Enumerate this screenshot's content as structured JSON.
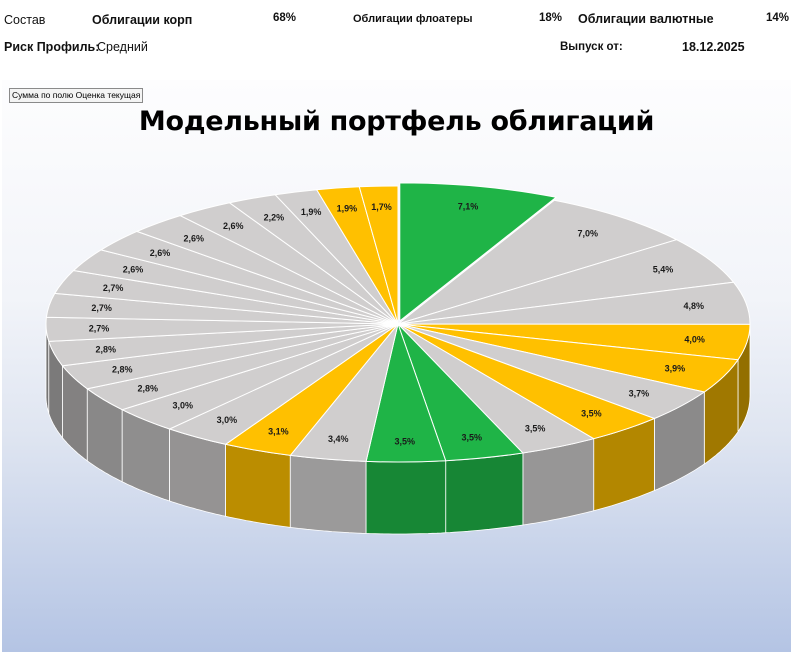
{
  "header": {
    "composition_label": "Состав",
    "corp_label": "Облигации корп",
    "corp_pct": "68%",
    "floaters_label": "Облигации флоатеры",
    "floaters_pct": "18%",
    "currency_label": "Облигации валютные",
    "currency_pct": "14%",
    "risk_label": "Риск Профиль:",
    "risk_value": "Средний",
    "issue_label": "Выпуск от:",
    "issue_date": "18.12.2025"
  },
  "pivot_field_button": "Сумма по полю Оценка текущая",
  "colors": {
    "green": "#1fb447",
    "yellow": "#ffc000",
    "gray": "#d0cece"
  },
  "chart_data": {
    "type": "pie",
    "style": "3d-exploded-first",
    "title": "Модельный портфель облигаций",
    "legend": "none",
    "data_label_format": "percent",
    "slices": [
      {
        "label": "7,1%",
        "value": 7.1,
        "color": "green"
      },
      {
        "label": "7,0%",
        "value": 7.0,
        "color": "gray"
      },
      {
        "label": "5,4%",
        "value": 5.4,
        "color": "gray"
      },
      {
        "label": "4,8%",
        "value": 4.8,
        "color": "gray"
      },
      {
        "label": "4,0%",
        "value": 4.0,
        "color": "yellow"
      },
      {
        "label": "3,9%",
        "value": 3.9,
        "color": "yellow"
      },
      {
        "label": "3,7%",
        "value": 3.7,
        "color": "gray"
      },
      {
        "label": "3,5%",
        "value": 3.5,
        "color": "yellow"
      },
      {
        "label": "3,5%",
        "value": 3.5,
        "color": "gray"
      },
      {
        "label": "3,5%",
        "value": 3.5,
        "color": "green"
      },
      {
        "label": "3,5%",
        "value": 3.5,
        "color": "green"
      },
      {
        "label": "3,4%",
        "value": 3.4,
        "color": "gray"
      },
      {
        "label": "3,1%",
        "value": 3.1,
        "color": "yellow"
      },
      {
        "label": "3,0%",
        "value": 3.0,
        "color": "gray"
      },
      {
        "label": "3,0%",
        "value": 3.0,
        "color": "gray"
      },
      {
        "label": "2,8%",
        "value": 2.8,
        "color": "gray"
      },
      {
        "label": "2,8%",
        "value": 2.8,
        "color": "gray"
      },
      {
        "label": "2,8%",
        "value": 2.8,
        "color": "gray"
      },
      {
        "label": "2,7%",
        "value": 2.7,
        "color": "gray"
      },
      {
        "label": "2,7%",
        "value": 2.7,
        "color": "gray"
      },
      {
        "label": "2,7%",
        "value": 2.7,
        "color": "gray"
      },
      {
        "label": "2,6%",
        "value": 2.6,
        "color": "gray"
      },
      {
        "label": "2,6%",
        "value": 2.6,
        "color": "gray"
      },
      {
        "label": "2,6%",
        "value": 2.6,
        "color": "gray"
      },
      {
        "label": "2,6%",
        "value": 2.6,
        "color": "gray"
      },
      {
        "label": "2,2%",
        "value": 2.2,
        "color": "gray"
      },
      {
        "label": "1,9%",
        "value": 1.9,
        "color": "gray"
      },
      {
        "label": "1,9%",
        "value": 1.9,
        "color": "yellow"
      },
      {
        "label": "1,7%",
        "value": 1.7,
        "color": "yellow"
      }
    ]
  }
}
